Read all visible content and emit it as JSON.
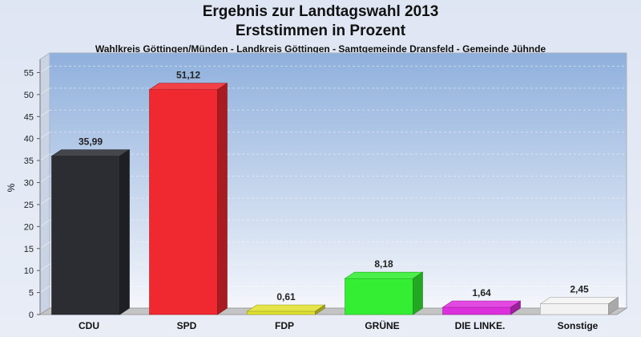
{
  "header": {
    "title_line1": "Ergebnis zur Landtagswahl 2013",
    "title_line2": "Erststimmen in Prozent",
    "subtitle": "Wahlkreis Göttingen/Münden - Landkreis Göttingen - Samtgemeinde Dransfeld - Gemeinde Jühnde"
  },
  "chart_data": {
    "type": "bar",
    "title": "Ergebnis zur Landtagswahl 2013 Erststimmen in Prozent",
    "subtitle": "Wahlkreis Göttingen/Münden - Landkreis Göttingen - Samtgemeinde Dransfeld - Gemeinde Jühnde",
    "ylabel": "%",
    "xlabel": "",
    "ylim": [
      0,
      58
    ],
    "yticks": [
      0,
      5,
      10,
      15,
      20,
      25,
      30,
      35,
      40,
      45,
      50,
      55
    ],
    "grid": true,
    "categories": [
      "CDU",
      "SPD",
      "FDP",
      "GRÜNE",
      "DIE LINKE.",
      "Sonstige"
    ],
    "values": [
      35.99,
      51.12,
      0.61,
      8.18,
      1.64,
      2.45
    ],
    "value_labels": [
      "35,99",
      "51,12",
      "0,61",
      "8,18",
      "1,64",
      "2,45"
    ],
    "colors": [
      "#2b2d33",
      "#f0282f",
      "#e0e030",
      "#33ee33",
      "#dd30dd",
      "#f2f2f2"
    ]
  }
}
